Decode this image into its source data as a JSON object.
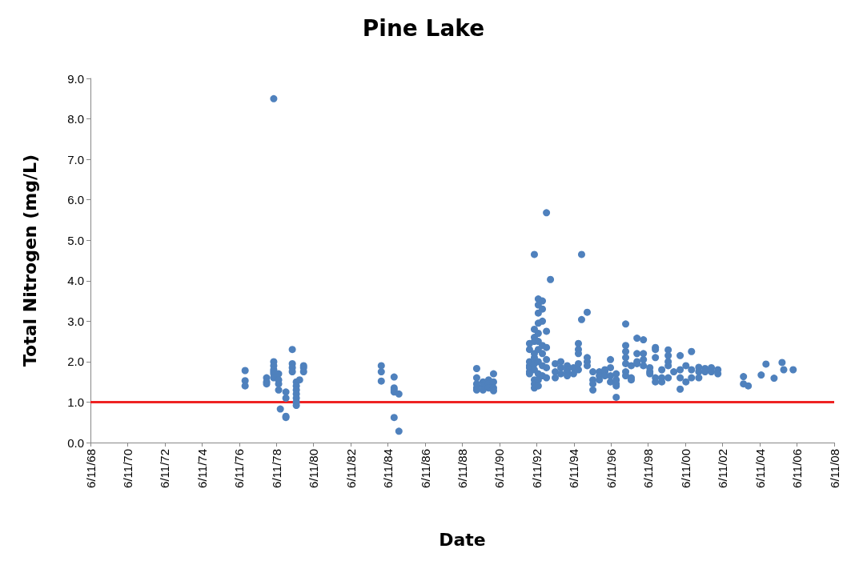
{
  "chart_data": {
    "type": "scatter",
    "title": "Pine Lake",
    "xlabel": "Date",
    "ylabel": "Total Nitrogen (mg/L)",
    "xlim": [
      "1968-06-11",
      "2008-06-11"
    ],
    "xticks": [
      {
        "value": "1968-06-11",
        "label": "6/11/68"
      },
      {
        "value": "1970-06-11",
        "label": "6/11/70"
      },
      {
        "value": "1972-06-11",
        "label": "6/11/72"
      },
      {
        "value": "1974-06-11",
        "label": "6/11/74"
      },
      {
        "value": "1976-06-11",
        "label": "6/11/76"
      },
      {
        "value": "1978-06-11",
        "label": "6/11/78"
      },
      {
        "value": "1980-06-11",
        "label": "6/11/80"
      },
      {
        "value": "1982-06-11",
        "label": "6/11/82"
      },
      {
        "value": "1984-06-11",
        "label": "6/11/84"
      },
      {
        "value": "1986-06-11",
        "label": "6/11/86"
      },
      {
        "value": "1988-06-11",
        "label": "6/11/88"
      },
      {
        "value": "1990-06-11",
        "label": "6/11/90"
      },
      {
        "value": "1992-06-11",
        "label": "6/11/92"
      },
      {
        "value": "1994-06-11",
        "label": "6/11/94"
      },
      {
        "value": "1996-06-11",
        "label": "6/11/96"
      },
      {
        "value": "1998-06-11",
        "label": "6/11/98"
      },
      {
        "value": "2000-06-11",
        "label": "6/11/00"
      },
      {
        "value": "2002-06-11",
        "label": "6/11/02"
      },
      {
        "value": "2004-06-11",
        "label": "6/11/04"
      },
      {
        "value": "2006-06-11",
        "label": "6/11/06"
      },
      {
        "value": "2008-06-11",
        "label": "6/11/08"
      }
    ],
    "ylim": [
      0,
      9
    ],
    "yticks": [
      {
        "value": 0,
        "label": "0.0"
      },
      {
        "value": 1,
        "label": "1.0"
      },
      {
        "value": 2,
        "label": "2.0"
      },
      {
        "value": 3,
        "label": "3.0"
      },
      {
        "value": 4,
        "label": "4.0"
      },
      {
        "value": 5,
        "label": "5.0"
      },
      {
        "value": 6,
        "label": "6.0"
      },
      {
        "value": 7,
        "label": "7.0"
      },
      {
        "value": 8,
        "label": "8.0"
      },
      {
        "value": 9,
        "label": "9.0"
      }
    ],
    "grid": false,
    "marker": "circle",
    "ref_lines": [
      {
        "axis": "y",
        "value": 1.0,
        "color": "#ee2222"
      }
    ],
    "series": [
      {
        "color": "#4f81bd",
        "x": [
          "1976-10-05",
          "1976-10-05",
          "1976-10-05",
          "1977-12-01",
          "1977-12-01",
          "1977-12-01",
          "1978-04-20",
          "1978-04-20",
          "1978-04-20",
          "1978-04-20",
          "1978-04-20",
          "1978-04-20",
          "1978-04-20",
          "1978-07-25",
          "1978-07-25",
          "1978-07-25",
          "1978-07-25",
          "1978-08-28",
          "1978-12-15",
          "1978-12-15",
          "1978-12-15",
          "1978-12-15",
          "1979-04-20",
          "1979-04-20",
          "1979-04-20",
          "1979-04-20",
          "1979-07-08",
          "1979-07-08",
          "1979-07-08",
          "1979-07-08",
          "1979-07-08",
          "1979-07-08",
          "1979-07-08",
          "1979-09-10",
          "1979-11-28",
          "1979-11-28",
          "1979-11-28",
          "1984-02-01",
          "1984-02-01",
          "1984-02-01",
          "1984-10-10",
          "1984-10-10",
          "1984-10-10",
          "1984-10-10",
          "1984-10-10",
          "1985-01-12",
          "1985-01-12",
          "1989-03-20",
          "1989-03-20",
          "1989-03-20",
          "1989-03-20",
          "1989-03-20",
          "1989-07-22",
          "1989-07-22",
          "1989-07-22",
          "1989-11-10",
          "1989-11-10",
          "1989-11-10",
          "1990-02-14",
          "1990-02-14",
          "1990-02-14",
          "1990-02-14",
          "1992-01-22",
          "1992-01-22",
          "1992-01-22",
          "1992-01-22",
          "1992-01-22",
          "1992-01-22",
          "1992-01-22",
          "1992-04-26",
          "1992-04-26",
          "1992-04-26",
          "1992-04-26",
          "1992-04-26",
          "1992-04-26",
          "1992-04-26",
          "1992-04-26",
          "1992-04-26",
          "1992-04-26",
          "1992-04-26",
          "1992-07-12",
          "1992-07-12",
          "1992-07-12",
          "1992-07-12",
          "1992-07-12",
          "1992-07-12",
          "1992-07-12",
          "1992-07-12",
          "1992-07-12",
          "1992-07-12",
          "1992-07-12",
          "1992-10-01",
          "1992-10-01",
          "1992-10-01",
          "1992-10-01",
          "1992-10-01",
          "1992-10-01",
          "1992-10-01",
          "1992-12-20",
          "1992-12-20",
          "1992-12-20",
          "1992-12-20",
          "1992-12-20",
          "1992-12-20",
          "1993-03-08",
          "1993-06-10",
          "1993-06-10",
          "1993-06-10",
          "1993-09-28",
          "1993-09-28",
          "1993-09-28",
          "1994-02-01",
          "1994-02-01",
          "1994-02-01",
          "1994-02-01",
          "1994-06-05",
          "1994-06-05",
          "1994-09-08",
          "1994-09-08",
          "1994-09-08",
          "1994-09-08",
          "1994-09-08",
          "1994-11-10",
          "1994-11-10",
          "1995-02-28",
          "1995-02-28",
          "1995-02-28",
          "1995-02-28",
          "1995-06-20",
          "1995-06-20",
          "1995-06-20",
          "1995-06-20",
          "1995-10-24",
          "1995-10-24",
          "1995-10-24",
          "1996-02-10",
          "1996-02-10",
          "1996-02-10",
          "1996-05-30",
          "1996-05-30",
          "1996-05-30",
          "1996-05-30",
          "1996-09-20",
          "1996-09-20",
          "1996-09-20",
          "1996-09-20",
          "1996-09-20",
          "1997-03-25",
          "1997-03-25",
          "1997-03-25",
          "1997-03-25",
          "1997-03-25",
          "1997-03-25",
          "1997-03-25",
          "1997-07-12",
          "1997-07-12",
          "1997-07-12",
          "1997-11-02",
          "1997-11-02",
          "1997-11-02",
          "1997-11-02",
          "1998-03-08",
          "1998-03-08",
          "1998-03-08",
          "1998-03-08",
          "1998-07-12",
          "1998-07-12",
          "1998-07-12",
          "1998-10-30",
          "1998-10-30",
          "1998-10-30",
          "1998-10-30",
          "1998-10-30",
          "1999-03-04",
          "1999-03-04",
          "1999-03-04",
          "1999-07-08",
          "1999-07-08",
          "1999-07-08",
          "1999-07-08",
          "1999-07-08",
          "1999-10-26",
          "2000-02-28",
          "2000-02-28",
          "2000-02-28",
          "2000-02-28",
          "2000-06-20",
          "2000-06-20",
          "2000-10-08",
          "2000-10-08",
          "2000-10-08",
          "2001-02-28",
          "2001-02-28",
          "2001-02-28",
          "2001-07-01",
          "2001-07-01",
          "2001-11-02",
          "2001-11-02",
          "2002-03-10",
          "2002-03-10",
          "2003-07-26",
          "2003-07-26",
          "2003-10-28",
          "2004-07-08",
          "2004-10-10",
          "2005-03-18",
          "2005-08-22",
          "2005-09-24",
          "2006-03-28"
        ],
        "values": [
          1.78,
          1.53,
          1.4,
          1.6,
          1.5,
          1.45,
          8.5,
          2.0,
          1.9,
          1.8,
          1.75,
          1.7,
          1.6,
          1.7,
          1.55,
          1.45,
          1.3,
          0.83,
          1.25,
          1.1,
          0.65,
          0.62,
          2.3,
          1.95,
          1.85,
          1.75,
          1.5,
          1.4,
          1.3,
          1.2,
          1.1,
          1.0,
          0.92,
          1.55,
          1.9,
          1.85,
          1.75,
          1.9,
          1.75,
          1.52,
          1.62,
          1.35,
          1.3,
          1.25,
          0.62,
          1.2,
          0.28,
          1.83,
          1.6,
          1.45,
          1.35,
          1.3,
          1.5,
          1.4,
          1.3,
          1.55,
          1.45,
          1.35,
          1.7,
          1.5,
          1.35,
          1.28,
          1.85,
          1.75,
          1.7,
          1.9,
          2.0,
          2.3,
          2.45,
          4.65,
          2.1,
          2.5,
          2.8,
          2.6,
          2.2,
          1.95,
          1.8,
          1.55,
          1.45,
          1.35,
          3.55,
          3.4,
          3.2,
          2.95,
          2.7,
          2.5,
          2.3,
          2.0,
          1.7,
          1.55,
          1.4,
          3.5,
          3.3,
          3.0,
          2.4,
          2.2,
          1.9,
          1.65,
          5.68,
          2.75,
          2.35,
          2.05,
          1.85,
          1.6,
          4.03,
          1.95,
          1.75,
          1.6,
          2.0,
          1.85,
          1.7,
          1.9,
          1.8,
          1.75,
          1.65,
          1.85,
          1.7,
          2.3,
          2.45,
          2.2,
          1.95,
          1.8,
          4.65,
          3.04,
          3.22,
          2.1,
          2.0,
          1.9,
          1.75,
          1.55,
          1.45,
          1.3,
          1.75,
          1.65,
          1.55,
          1.8,
          1.75,
          1.65,
          1.85,
          2.05,
          1.65,
          1.5,
          1.12,
          1.7,
          1.55,
          1.4,
          1.45,
          2.93,
          2.4,
          2.25,
          2.1,
          1.95,
          1.75,
          1.65,
          1.9,
          1.6,
          1.55,
          2.58,
          2.2,
          2.0,
          1.95,
          2.54,
          2.2,
          2.05,
          1.9,
          1.85,
          1.75,
          1.7,
          2.35,
          2.3,
          2.1,
          1.6,
          1.5,
          1.8,
          1.6,
          1.5,
          2.29,
          2.15,
          2.0,
          1.9,
          1.6,
          1.75,
          2.15,
          1.8,
          1.6,
          1.32,
          1.9,
          1.5,
          2.25,
          1.8,
          1.6,
          1.86,
          1.75,
          1.6,
          1.83,
          1.75,
          1.85,
          1.75,
          1.8,
          1.7,
          1.63,
          1.45,
          1.4,
          1.67,
          1.94,
          1.59,
          1.98,
          1.8,
          1.8
        ]
      }
    ]
  }
}
